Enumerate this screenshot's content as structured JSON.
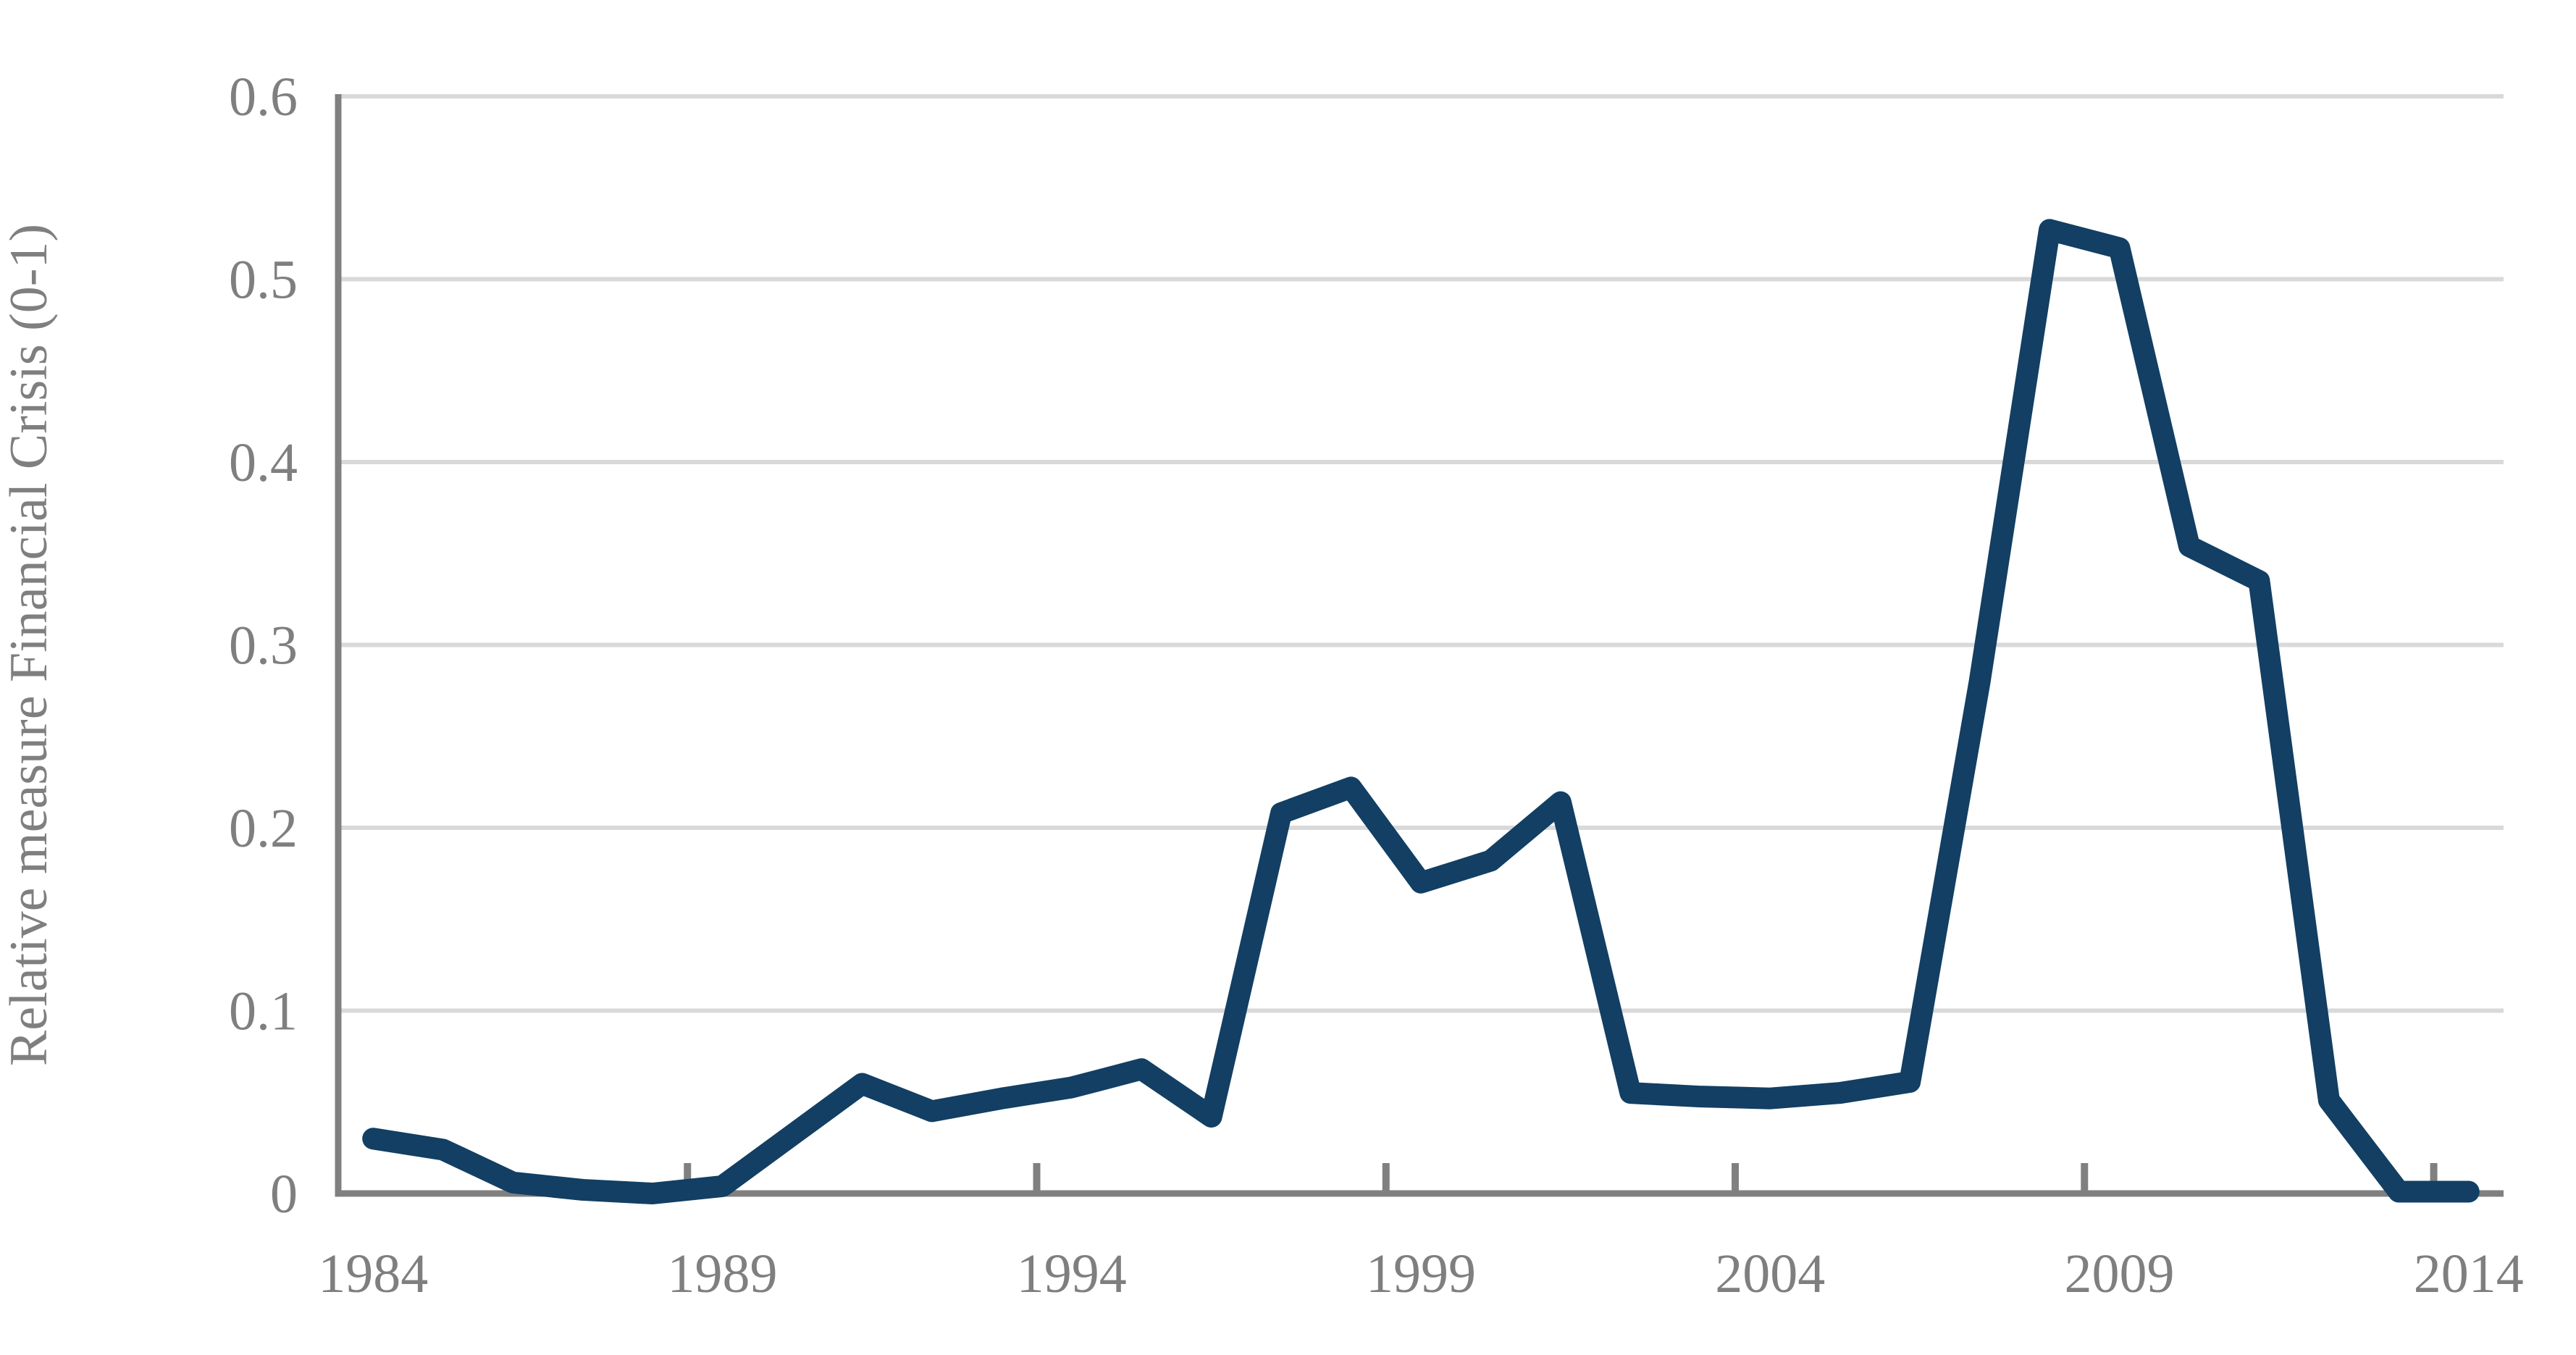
{
  "chart_data": {
    "type": "line",
    "title": "",
    "xlabel": "",
    "ylabel": "Relative measure Financial Crisis (0-1)",
    "x": [
      1984,
      1985,
      1986,
      1987,
      1988,
      1989,
      1990,
      1991,
      1992,
      1993,
      1994,
      1995,
      1996,
      1997,
      1998,
      1999,
      2000,
      2001,
      2002,
      2003,
      2004,
      2005,
      2006,
      2007,
      2008,
      2009,
      2010,
      2011,
      2012,
      2013,
      2014
    ],
    "values": [
      0.03,
      0.024,
      0.006,
      0.002,
      0.0,
      0.004,
      0.032,
      0.06,
      0.045,
      0.052,
      0.058,
      0.068,
      0.042,
      0.208,
      0.222,
      0.17,
      0.182,
      0.214,
      0.055,
      0.053,
      0.052,
      0.055,
      0.061,
      0.28,
      0.527,
      0.517,
      0.354,
      0.335,
      0.051,
      0.001,
      0.001
    ],
    "series_name": "Relative measure Financial Crisis",
    "ylim": [
      0,
      0.6
    ],
    "ytick_step": 0.1,
    "ytick_labels": [
      "0",
      "0.1",
      "0.2",
      "0.3",
      "0.4",
      "0.5",
      "0.6"
    ],
    "xtick_years": [
      1984,
      1989,
      1994,
      1999,
      2004,
      2009,
      2014
    ],
    "xtick_labels": [
      "1984",
      "1989",
      "1994",
      "1999",
      "2004",
      "2009",
      "2014"
    ],
    "grid": "horizontal-only",
    "legend": "none",
    "colors": {
      "line": "#123f63",
      "axis": "#808080",
      "grid": "#d9d9d9",
      "label": "#7f7f7f",
      "background": "#ffffff"
    }
  }
}
